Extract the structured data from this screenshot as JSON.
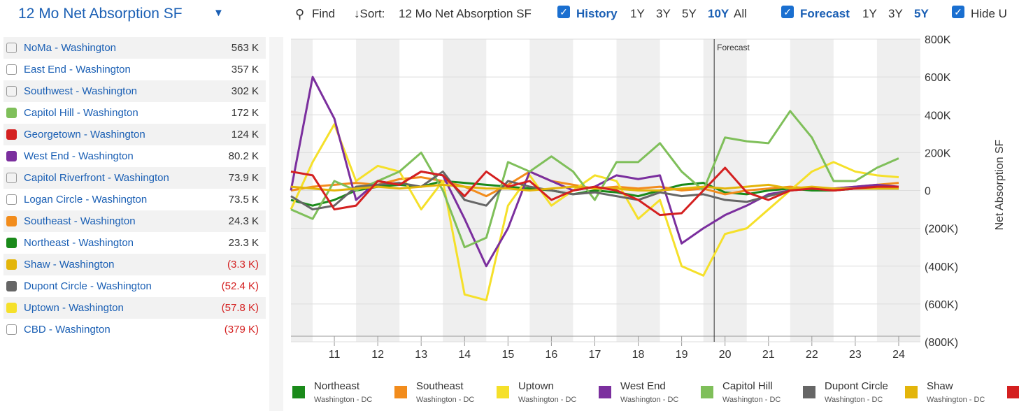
{
  "toolbar": {
    "title": "12 Mo Net Absorption SF",
    "find": "Find",
    "sort_label": "↓Sort:",
    "sort_value": "12 Mo Net Absorption SF",
    "history": "History",
    "history_ranges": [
      "1Y",
      "3Y",
      "5Y",
      "10Y",
      "All"
    ],
    "history_active": 3,
    "forecast": "Forecast",
    "forecast_ranges": [
      "1Y",
      "3Y",
      "5Y"
    ],
    "forecast_active": 2,
    "hide": "Hide U"
  },
  "list": [
    {
      "name": "NoMa - Washington",
      "value": "563 K",
      "color": null
    },
    {
      "name": "East End - Washington",
      "value": "357 K",
      "color": null
    },
    {
      "name": "Southwest - Washington",
      "value": "302 K",
      "color": null
    },
    {
      "name": "Capitol Hill - Washington",
      "value": "172 K",
      "color": "#7fbf5a"
    },
    {
      "name": "Georgetown - Washington",
      "value": "124 K",
      "color": "#d42020"
    },
    {
      "name": "West End - Washington",
      "value": "80.2 K",
      "color": "#7b2f9e"
    },
    {
      "name": "Capitol Riverfront - Washington",
      "value": "73.9 K",
      "color": null
    },
    {
      "name": "Logan Circle - Washington",
      "value": "73.5 K",
      "color": null
    },
    {
      "name": "Southeast - Washington",
      "value": "24.3 K",
      "color": "#f28c1c"
    },
    {
      "name": "Northeast - Washington",
      "value": "23.3 K",
      "color": "#1a8a1a"
    },
    {
      "name": "Shaw - Washington",
      "value": "(3.3 K)",
      "color": "#e3b50a"
    },
    {
      "name": "Dupont Circle - Washington",
      "value": "(52.4 K)",
      "color": "#666666"
    },
    {
      "name": "Uptown - Washington",
      "value": "(57.8 K)",
      "color": "#f5e02a"
    },
    {
      "name": "CBD - Washington",
      "value": "(379 K)",
      "color": null
    }
  ],
  "chart_data": {
    "type": "line",
    "y_label": "Net Absorption SF",
    "annotation": {
      "text": "Forecast",
      "x": 2020.25
    },
    "x": [
      2010.5,
      2011,
      2011.5,
      2012,
      2012.5,
      2013,
      2013.5,
      2014,
      2014.5,
      2015,
      2015.5,
      2016,
      2016.5,
      2017,
      2017.5,
      2018,
      2018.5,
      2019,
      2019.5,
      2020,
      2020.5,
      2021,
      2021.5,
      2022,
      2022.5,
      2023,
      2023.5,
      2024,
      2024.5
    ],
    "xlim": [
      2010.5,
      2025
    ],
    "xticks": [
      {
        "value": 2011.5,
        "label": "11"
      },
      {
        "value": 2012.5,
        "label": "12"
      },
      {
        "value": 2013.5,
        "label": "13"
      },
      {
        "value": 2014.5,
        "label": "14"
      },
      {
        "value": 2015.5,
        "label": "15"
      },
      {
        "value": 2016.5,
        "label": "16"
      },
      {
        "value": 2017.5,
        "label": "17"
      },
      {
        "value": 2018.5,
        "label": "18"
      },
      {
        "value": 2019.5,
        "label": "19"
      },
      {
        "value": 2020.5,
        "label": "20"
      },
      {
        "value": 2021.5,
        "label": "21"
      },
      {
        "value": 2022.5,
        "label": "22"
      },
      {
        "value": 2023.5,
        "label": "23"
      },
      {
        "value": 2024.5,
        "label": "24"
      }
    ],
    "ylim": [
      -800000,
      800000
    ],
    "yticks": [
      {
        "value": 800000,
        "label": "800K"
      },
      {
        "value": 600000,
        "label": "600K"
      },
      {
        "value": 400000,
        "label": "400K"
      },
      {
        "value": 200000,
        "label": "200K"
      },
      0,
      {
        "value": -200000,
        "label": "(200K)"
      },
      {
        "value": -400000,
        "label": "(400K)"
      },
      {
        "value": -600000,
        "label": "(600K)"
      },
      {
        "value": -800000,
        "label": "(800K)"
      }
    ],
    "grid": true,
    "series": [
      {
        "name": "Northeast",
        "region": "Washington - DC",
        "color": "#1a8a1a",
        "values": [
          -50000,
          -80000,
          -50000,
          0,
          20000,
          30000,
          20000,
          50000,
          40000,
          30000,
          20000,
          10000,
          0,
          -20000,
          0,
          -10000,
          -30000,
          0,
          30000,
          40000,
          -10000,
          -20000,
          0,
          10000,
          0,
          0,
          10000,
          10000,
          10000
        ]
      },
      {
        "name": "Southeast",
        "region": "Washington - DC",
        "color": "#f28c1c",
        "values": [
          0,
          20000,
          30000,
          40000,
          30000,
          60000,
          70000,
          50000,
          20000,
          -30000,
          30000,
          100000,
          50000,
          30000,
          10000,
          20000,
          10000,
          20000,
          0,
          10000,
          -20000,
          0,
          10000,
          20000,
          10000,
          10000,
          20000,
          30000,
          40000
        ]
      },
      {
        "name": "Uptown",
        "region": "Washington - DC",
        "color": "#f5e02a",
        "values": [
          -100000,
          150000,
          350000,
          50000,
          130000,
          100000,
          -100000,
          50000,
          -550000,
          -580000,
          -80000,
          80000,
          -80000,
          0,
          80000,
          50000,
          -150000,
          -50000,
          -400000,
          -450000,
          -230000,
          -200000,
          -100000,
          0,
          100000,
          150000,
          100000,
          80000,
          70000
        ]
      },
      {
        "name": "West End",
        "region": "Washington - DC",
        "color": "#7b2f9e",
        "values": [
          0,
          600000,
          380000,
          -50000,
          50000,
          30000,
          100000,
          80000,
          -150000,
          -400000,
          -200000,
          100000,
          50000,
          0,
          20000,
          80000,
          60000,
          80000,
          -280000,
          -200000,
          -130000,
          -80000,
          -20000,
          0,
          10000,
          10000,
          20000,
          30000,
          20000
        ]
      },
      {
        "name": "Capitol Hill",
        "region": "Washington - DC",
        "color": "#7fbf5a",
        "values": [
          -100000,
          -150000,
          50000,
          0,
          50000,
          100000,
          200000,
          0,
          -300000,
          -250000,
          150000,
          100000,
          180000,
          100000,
          -50000,
          150000,
          150000,
          250000,
          100000,
          0,
          280000,
          260000,
          250000,
          420000,
          280000,
          50000,
          50000,
          120000,
          170000
        ]
      },
      {
        "name": "Dupont Circle",
        "region": "Washington - DC",
        "color": "#666666",
        "values": [
          -30000,
          -100000,
          -80000,
          20000,
          30000,
          40000,
          20000,
          100000,
          -50000,
          -80000,
          50000,
          20000,
          0,
          -20000,
          -10000,
          -30000,
          -50000,
          -10000,
          -30000,
          -20000,
          -50000,
          -60000,
          -30000,
          0,
          10000,
          0,
          10000,
          10000,
          10000
        ]
      },
      {
        "name": "Shaw",
        "region": "Washington - DC",
        "color": "#e3b50a",
        "values": [
          20000,
          10000,
          0,
          10000,
          20000,
          10000,
          20000,
          30000,
          20000,
          10000,
          10000,
          0,
          10000,
          20000,
          10000,
          10000,
          0,
          0,
          10000,
          20000,
          10000,
          20000,
          30000,
          10000,
          20000,
          10000,
          10000,
          10000,
          10000
        ]
      },
      {
        "name": "Georgetown",
        "region": "Washington - DC",
        "color": "#d42020",
        "values": [
          100000,
          80000,
          -100000,
          -80000,
          50000,
          30000,
          100000,
          80000,
          -30000,
          100000,
          20000,
          50000,
          -50000,
          0,
          20000,
          0,
          -50000,
          -130000,
          -120000,
          0,
          120000,
          -10000,
          -50000,
          0,
          10000,
          0,
          10000,
          20000,
          20000
        ]
      }
    ]
  }
}
